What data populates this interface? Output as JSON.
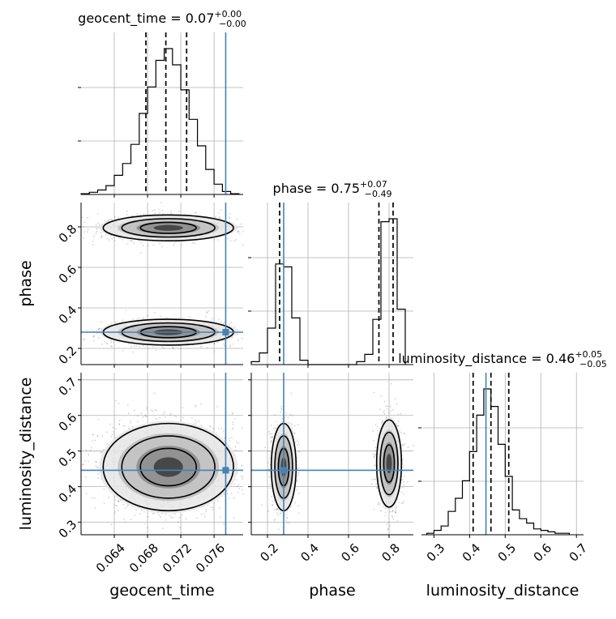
{
  "chart_data": {
    "type": "corner",
    "parameters": [
      "geocent_time",
      "phase",
      "luminosity_distance"
    ],
    "truth": {
      "geocent_time": 0.0774,
      "phase": 0.28,
      "luminosity_distance": 0.446
    },
    "diagonal": [
      {
        "parameter": "geocent_time",
        "title_prefix": "geocent_time = ",
        "title_value": "0.07",
        "title_sup": "+0.00",
        "title_sub": "−0.00",
        "range": [
          0.06,
          0.0795
        ],
        "quantiles": [
          0.0678,
          0.0702,
          0.0727
        ],
        "bin_edges": [
          0.06,
          0.061,
          0.062,
          0.063,
          0.064,
          0.065,
          0.066,
          0.067,
          0.068,
          0.069,
          0.07,
          0.071,
          0.072,
          0.073,
          0.074,
          0.075,
          0.076,
          0.077,
          0.078,
          0.079
        ],
        "counts": [
          0.5,
          1.5,
          3,
          6,
          13,
          21,
          34,
          55,
          73,
          91,
          99,
          88,
          71,
          51,
          33,
          17,
          7,
          2,
          0.5
        ]
      },
      {
        "parameter": "phase",
        "title_prefix": "phase = ",
        "title_value": "0.75",
        "title_sup": "+0.07",
        "title_sub": "−0.49",
        "range": [
          0.12,
          0.92
        ],
        "quantiles": [
          0.26,
          0.75,
          0.82
        ],
        "bin_edges": [
          0.12,
          0.16,
          0.2,
          0.24,
          0.28,
          0.32,
          0.36,
          0.4,
          0.44,
          0.48,
          0.52,
          0.56,
          0.6,
          0.64,
          0.68,
          0.72,
          0.76,
          0.8,
          0.84,
          0.88
        ],
        "counts": [
          2,
          8,
          25,
          69,
          67,
          32,
          3,
          0,
          0,
          0,
          0,
          0,
          0,
          2,
          7,
          31,
          98,
          100,
          38
        ]
      },
      {
        "parameter": "luminosity_distance",
        "title_prefix": "luminosity_distance = ",
        "title_value": "0.46",
        "title_sup": "+0.05",
        "title_sub": "−0.05",
        "range": [
          0.265,
          0.72
        ],
        "quantiles": [
          0.41,
          0.46,
          0.51
        ],
        "bin_edges": [
          0.28,
          0.3,
          0.32,
          0.34,
          0.36,
          0.38,
          0.4,
          0.42,
          0.44,
          0.46,
          0.48,
          0.5,
          0.52,
          0.54,
          0.56,
          0.58,
          0.6,
          0.62,
          0.64,
          0.66,
          0.68
        ],
        "counts": [
          1,
          3,
          6,
          16,
          25,
          37,
          57,
          82,
          100,
          88,
          62,
          40,
          17,
          11,
          8,
          4,
          3,
          2,
          1,
          1
        ]
      }
    ],
    "axes": {
      "geocent_time": {
        "range": [
          0.06,
          0.0795
        ],
        "ticks": [
          0.064,
          0.068,
          0.072,
          0.076
        ],
        "tick_labels": [
          "0.064",
          "0.068",
          "0.072",
          "0.076"
        ]
      },
      "phase": {
        "range": [
          0.12,
          0.92
        ],
        "ticks": [
          0.2,
          0.4,
          0.6,
          0.8
        ],
        "tick_labels": [
          "0.2",
          "0.4",
          "0.6",
          "0.8"
        ]
      },
      "luminosity_distance": {
        "range": [
          0.265,
          0.72
        ],
        "ticks": [
          0.3,
          0.4,
          0.5,
          0.6,
          0.7
        ],
        "tick_labels": [
          "0.3",
          "0.4",
          "0.5",
          "0.6",
          "0.7"
        ]
      }
    },
    "joint_modes": {
      "phase|geocent_time": [
        {
          "center": [
            0.0705,
            0.795
          ],
          "spread": [
            0.0032,
            0.026
          ],
          "weight": 0.5
        },
        {
          "center": [
            0.0705,
            0.28
          ],
          "spread": [
            0.0032,
            0.026
          ],
          "weight": 0.5
        }
      ],
      "luminosity_distance|geocent_time": [
        {
          "center": [
            0.0705,
            0.455
          ],
          "spread": [
            0.0032,
            0.05
          ],
          "weight": 1.0
        }
      ],
      "luminosity_distance|phase": [
        {
          "center": [
            0.28,
            0.455
          ],
          "spread": [
            0.025,
            0.05
          ],
          "weight": 0.5
        },
        {
          "center": [
            0.8,
            0.465
          ],
          "spread": [
            0.025,
            0.05
          ],
          "weight": 0.5
        }
      ]
    },
    "colors": {
      "truth": "#4682b4",
      "hist": "#000000",
      "grid": "#b0b0b0",
      "points": "#808080"
    },
    "grid": true
  }
}
